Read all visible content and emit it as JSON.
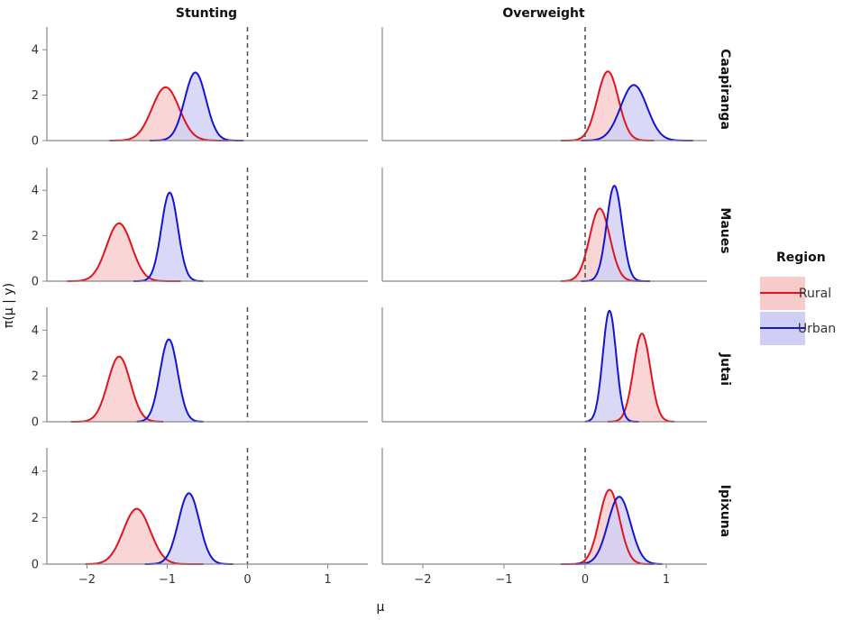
{
  "chart_data": {
    "type": "area",
    "title": "",
    "columns": [
      "Stunting",
      "Overweight"
    ],
    "rows": [
      "Caapiranga",
      "Maues",
      "Jutai",
      "Ipixuna"
    ],
    "xlabel": "μ",
    "ylabel": "π(μ | y)",
    "xlim": [
      -2.5,
      1.5
    ],
    "ylim": [
      0,
      5
    ],
    "x_ticks": [
      -2,
      -1,
      0,
      1
    ],
    "y_ticks": [
      0,
      2,
      4
    ],
    "reference_line_x": 0,
    "legend": {
      "title": "Region",
      "position": "right",
      "entries": [
        {
          "name": "Rural",
          "line_color": "#e0141e",
          "fill_color": "#f8caca"
        },
        {
          "name": "Urban",
          "line_color": "#1414d2",
          "fill_color": "#cfcff5"
        }
      ]
    },
    "densities": [
      {
        "row": "Caapiranga",
        "column": "Stunting",
        "region": "Rural",
        "mean": -1.02,
        "sd": 0.17,
        "peak": 2.35,
        "x_range": [
          -1.72,
          -0.23
        ]
      },
      {
        "row": "Caapiranga",
        "column": "Stunting",
        "region": "Urban",
        "mean": -0.65,
        "sd": 0.133,
        "peak": 3.0,
        "x_range": [
          -1.22,
          -0.05
        ]
      },
      {
        "row": "Caapiranga",
        "column": "Overweight",
        "region": "Rural",
        "mean": 0.28,
        "sd": 0.13,
        "peak": 3.05,
        "x_range": [
          -0.3,
          0.85
        ]
      },
      {
        "row": "Caapiranga",
        "column": "Overweight",
        "region": "Urban",
        "mean": 0.6,
        "sd": 0.163,
        "peak": 2.45,
        "x_range": [
          -0.05,
          1.33
        ]
      },
      {
        "row": "Maues",
        "column": "Stunting",
        "region": "Rural",
        "mean": -1.6,
        "sd": 0.157,
        "peak": 2.55,
        "x_range": [
          -2.25,
          -0.83
        ]
      },
      {
        "row": "Maues",
        "column": "Stunting",
        "region": "Urban",
        "mean": -0.97,
        "sd": 0.103,
        "peak": 3.9,
        "x_range": [
          -1.42,
          -0.55
        ]
      },
      {
        "row": "Maues",
        "column": "Overweight",
        "region": "Rural",
        "mean": 0.18,
        "sd": 0.125,
        "peak": 3.2,
        "x_range": [
          -0.3,
          0.7
        ]
      },
      {
        "row": "Maues",
        "column": "Overweight",
        "region": "Urban",
        "mean": 0.36,
        "sd": 0.095,
        "peak": 4.2,
        "x_range": [
          -0.05,
          0.8
        ]
      },
      {
        "row": "Jutai",
        "column": "Stunting",
        "region": "Rural",
        "mean": -1.6,
        "sd": 0.14,
        "peak": 2.85,
        "x_range": [
          -2.2,
          -1.05
        ]
      },
      {
        "row": "Jutai",
        "column": "Stunting",
        "region": "Urban",
        "mean": -0.98,
        "sd": 0.11,
        "peak": 3.6,
        "x_range": [
          -1.38,
          -0.55
        ]
      },
      {
        "row": "Jutai",
        "column": "Overweight",
        "region": "Rural",
        "mean": 0.7,
        "sd": 0.104,
        "peak": 3.85,
        "x_range": [
          0.28,
          1.1
        ]
      },
      {
        "row": "Jutai",
        "column": "Overweight",
        "region": "Urban",
        "mean": 0.3,
        "sd": 0.082,
        "peak": 4.85,
        "x_range": [
          0.0,
          0.66
        ]
      },
      {
        "row": "Ipixuna",
        "column": "Stunting",
        "region": "Rural",
        "mean": -1.38,
        "sd": 0.168,
        "peak": 2.38,
        "x_range": [
          -2.02,
          -0.55
        ]
      },
      {
        "row": "Ipixuna",
        "column": "Stunting",
        "region": "Urban",
        "mean": -0.73,
        "sd": 0.13,
        "peak": 3.05,
        "x_range": [
          -1.28,
          -0.18
        ]
      },
      {
        "row": "Ipixuna",
        "column": "Overweight",
        "region": "Rural",
        "mean": 0.3,
        "sd": 0.125,
        "peak": 3.2,
        "x_range": [
          -0.3,
          0.85
        ]
      },
      {
        "row": "Ipixuna",
        "column": "Overweight",
        "region": "Urban",
        "mean": 0.42,
        "sd": 0.14,
        "peak": 2.9,
        "x_range": [
          -0.12,
          0.95
        ]
      }
    ]
  }
}
